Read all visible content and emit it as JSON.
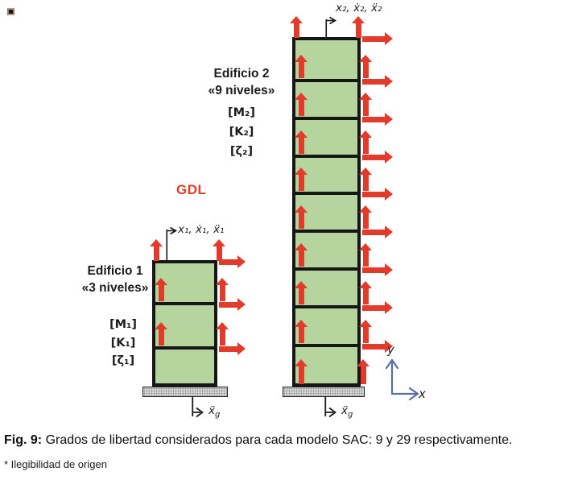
{
  "figure": {
    "gdl_label": "GDL",
    "buildings": [
      {
        "name": "Edificio 1",
        "levels_label": "«3 niveles»",
        "matrices": [
          "[M₁]",
          "[K₁]",
          "[ζ₁]"
        ],
        "dof_label": "x₁, ẋ₁, ẍ₁",
        "stories": 3,
        "has_base_vertical_arrows": false
      },
      {
        "name": "Edificio 2",
        "levels_label": "«9 niveles»",
        "matrices": [
          "[M₂]",
          "[K₂]",
          "[ζ₂]"
        ],
        "dof_label": "x₂, ẋ₂, ẍ₂",
        "stories": 9,
        "has_base_vertical_arrows": true
      }
    ],
    "ground_label": {
      "main": "ẍ",
      "sub": "g"
    },
    "axes": {
      "x_label": "x",
      "y_label": "y"
    },
    "colors": {
      "story_fill": "#b6d49d",
      "outline": "#161616",
      "arrow_red": "#e23b2b",
      "axes_blue": "#5470a6",
      "base_fill": "#d7d7d7"
    }
  },
  "caption": {
    "prefix": "Fig. 9:",
    "text": "Grados de libertad considerados para cada modelo SAC: 9 y 29 respectivamente."
  },
  "footnote": "* Ilegibilidad de origen"
}
